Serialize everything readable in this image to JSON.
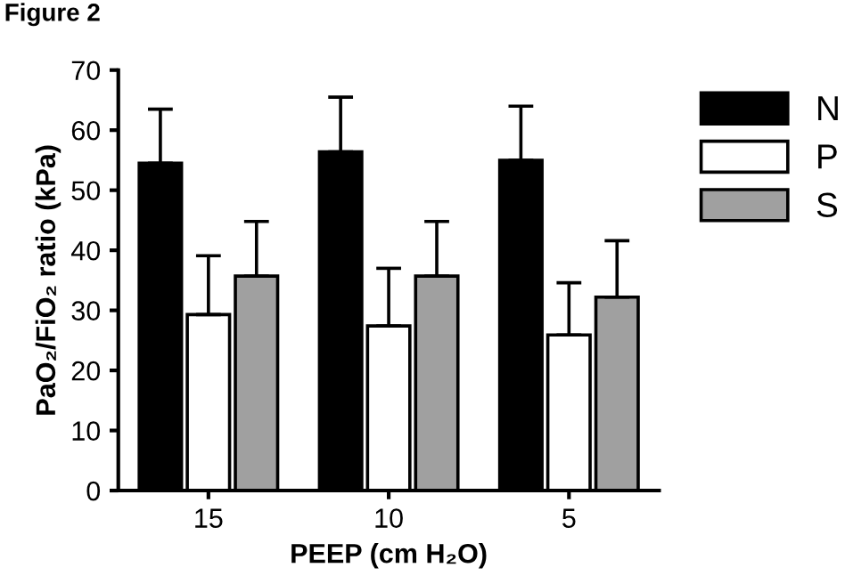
{
  "chart_data": {
    "type": "bar",
    "title": "Figure 2",
    "xlabel": "PEEP (cm H₂O)",
    "ylabel": "PaO₂/FiO₂ ratio (kPa)",
    "categories": [
      "15",
      "10",
      "5"
    ],
    "series": [
      {
        "name": "N",
        "color": "#000000",
        "values": [
          54.5,
          56.4,
          55.0
        ],
        "errors": [
          [
            54.5,
            63.5
          ],
          [
            56.4,
            65.5
          ],
          [
            55.0,
            64.0
          ]
        ]
      },
      {
        "name": "P",
        "color": "#ffffff",
        "values": [
          29.3,
          27.4,
          25.9
        ],
        "errors": [
          [
            29.3,
            39.1
          ],
          [
            27.4,
            37.0
          ],
          [
            25.9,
            34.6
          ]
        ]
      },
      {
        "name": "S",
        "color": "#a0a0a0",
        "values": [
          35.7,
          35.7,
          32.2
        ],
        "errors": [
          [
            35.7,
            44.8
          ],
          [
            35.7,
            44.8
          ],
          [
            32.2,
            41.6
          ]
        ]
      }
    ],
    "ylim": [
      0,
      70
    ],
    "yticks": [
      0,
      10,
      20,
      30,
      40,
      50,
      60,
      70
    ],
    "grid": false,
    "legend": "top right"
  }
}
